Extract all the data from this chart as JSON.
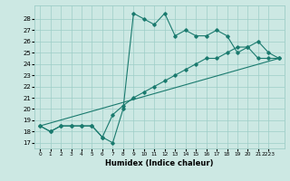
{
  "line1_x": [
    0,
    1,
    2,
    3,
    4,
    5,
    6,
    7,
    8,
    9,
    10,
    11,
    12,
    13,
    14,
    15,
    16,
    17,
    18,
    19,
    20,
    21,
    22,
    23
  ],
  "line1_y": [
    18.5,
    18.0,
    18.5,
    18.5,
    18.5,
    18.5,
    17.5,
    17.0,
    20.0,
    28.5,
    28.0,
    27.5,
    28.5,
    26.5,
    27.0,
    26.5,
    26.5,
    27.0,
    26.5,
    25.0,
    25.5,
    26.0,
    25.0,
    24.5
  ],
  "line2_x": [
    0,
    1,
    2,
    3,
    4,
    5,
    6,
    7,
    8,
    9,
    10,
    11,
    12,
    13,
    14,
    15,
    16,
    17,
    18,
    19,
    20,
    21,
    22,
    23
  ],
  "line2_y": [
    18.5,
    18.0,
    18.5,
    18.5,
    18.5,
    18.5,
    17.5,
    19.5,
    20.3,
    21.0,
    21.5,
    22.0,
    22.5,
    23.0,
    23.5,
    24.0,
    24.5,
    24.5,
    25.0,
    25.5,
    25.5,
    24.5,
    24.5,
    24.5
  ],
  "line3_x": [
    0,
    23
  ],
  "line3_y": [
    18.5,
    24.5
  ],
  "line_color": "#1a7a6e",
  "bg_color": "#cce8e3",
  "grid_color": "#9ecdc7",
  "xlabel": "Humidex (Indice chaleur)",
  "ylabel_ticks": [
    17,
    18,
    19,
    20,
    21,
    22,
    23,
    24,
    25,
    26,
    27,
    28
  ],
  "xlim": [
    -0.5,
    23.5
  ],
  "ylim": [
    16.5,
    29.2
  ],
  "xtick_labels": [
    "0",
    "1",
    "2",
    "3",
    "4",
    "5",
    "6",
    "7",
    "8",
    "9",
    "10",
    "11",
    "12",
    "13",
    "14",
    "15",
    "16",
    "17",
    "18",
    "19",
    "20",
    "21",
    "2223"
  ],
  "xtick_positions": [
    0,
    1,
    2,
    3,
    4,
    5,
    6,
    7,
    8,
    9,
    10,
    11,
    12,
    13,
    14,
    15,
    16,
    17,
    18,
    19,
    20,
    21,
    22
  ]
}
